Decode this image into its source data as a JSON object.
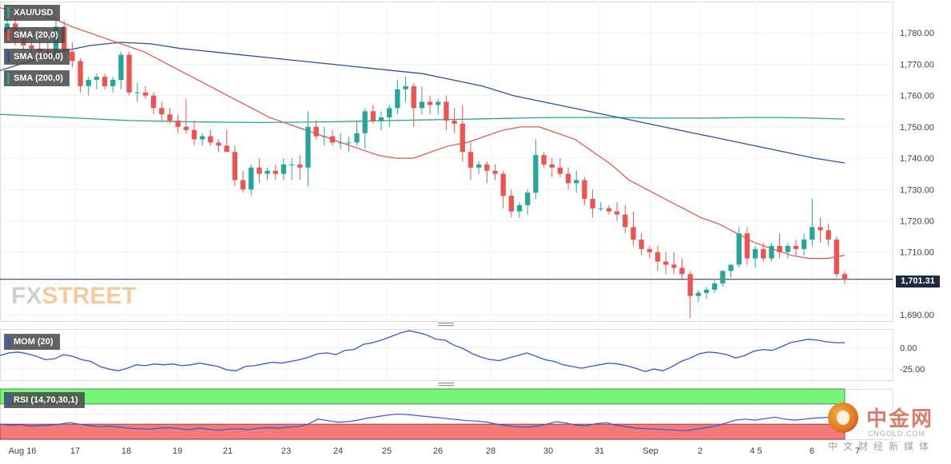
{
  "symbol": "XAU/USD",
  "indicators": {
    "sma20": "SMA (20,0)",
    "sma100": "SMA (100,0)",
    "sma200": "SMA (200,0)",
    "mom": "MOM (20)",
    "rsi": "RSI (14,70,30,1)"
  },
  "colors": {
    "bull": "#26a69a",
    "bear": "#ef5350",
    "sma20": "#e8523f",
    "sma100": "#2a4fa3",
    "sma200": "#2aa58f",
    "mom": "#3358d6",
    "rsi": "#3358d6",
    "rsi_over": "#76f57a",
    "rsi_under": "#f47a7a"
  },
  "watermark": {
    "left": "FX",
    "right": "STREET"
  },
  "current_price": "1,701.31",
  "logo": {
    "main": "中金网",
    "url": "CNGOLD.COM",
    "sub": "中文财经新媒体"
  },
  "chart_data": [
    {
      "type": "candlestick",
      "title": "XAU/USD",
      "y_ticks": [
        "1,690.00",
        "1,700.00",
        "1,710.00",
        "1,720.00",
        "1,730.00",
        "1,740.00",
        "1,750.00",
        "1,760.00",
        "1,770.00",
        "1,780.00"
      ],
      "ylim": [
        1688,
        1790
      ],
      "x_ticks": [
        "Aug 16",
        "17",
        "18",
        "19",
        "21",
        "23",
        "24",
        "25",
        "26",
        "28",
        "30",
        "31",
        "Sep",
        "2",
        "4 5",
        "6",
        "7"
      ],
      "current_price": 1701.31,
      "ohlc": [
        [
          1780,
          1787,
          1777,
          1783
        ],
        [
          1783,
          1786,
          1776,
          1778
        ],
        [
          1778,
          1781,
          1774,
          1776
        ],
        [
          1776,
          1779,
          1773,
          1775
        ],
        [
          1775,
          1778,
          1772,
          1774
        ],
        [
          1774,
          1777,
          1770,
          1772
        ],
        [
          1772,
          1784,
          1771,
          1782
        ],
        [
          1782,
          1784,
          1772,
          1774
        ],
        [
          1774,
          1777,
          1769,
          1771
        ],
        [
          1771,
          1772,
          1761,
          1763
        ],
        [
          1763,
          1766,
          1760,
          1765
        ],
        [
          1765,
          1767,
          1762,
          1766
        ],
        [
          1766,
          1767,
          1762,
          1763
        ],
        [
          1763,
          1766,
          1761,
          1765
        ],
        [
          1765,
          1774,
          1762,
          1773
        ],
        [
          1773,
          1774,
          1760,
          1761
        ],
        [
          1761,
          1764,
          1758,
          1761
        ],
        [
          1761,
          1763,
          1759,
          1760
        ],
        [
          1760,
          1761,
          1754,
          1756
        ],
        [
          1756,
          1758,
          1752,
          1754
        ],
        [
          1754,
          1756,
          1751,
          1752
        ],
        [
          1752,
          1754,
          1748,
          1750
        ],
        [
          1750,
          1759,
          1748,
          1749
        ],
        [
          1749,
          1752,
          1744,
          1746
        ],
        [
          1746,
          1748,
          1744,
          1747
        ],
        [
          1747,
          1749,
          1744,
          1745
        ],
        [
          1745,
          1746,
          1742,
          1744
        ],
        [
          1744,
          1749,
          1742,
          1742
        ],
        [
          1742,
          1744,
          1731,
          1733
        ],
        [
          1733,
          1736,
          1729,
          1730
        ],
        [
          1730,
          1738,
          1728,
          1737
        ],
        [
          1737,
          1740,
          1732,
          1735
        ],
        [
          1735,
          1737,
          1733,
          1736
        ],
        [
          1736,
          1738,
          1733,
          1735
        ],
        [
          1735,
          1740,
          1733,
          1738
        ],
        [
          1738,
          1740,
          1733,
          1738
        ],
        [
          1738,
          1741,
          1733,
          1737
        ],
        [
          1737,
          1755,
          1731,
          1750
        ],
        [
          1750,
          1752,
          1746,
          1747
        ],
        [
          1747,
          1750,
          1744,
          1747
        ],
        [
          1747,
          1749,
          1744,
          1745
        ],
        [
          1745,
          1748,
          1743,
          1745
        ],
        [
          1745,
          1747,
          1742,
          1745
        ],
        [
          1745,
          1752,
          1744,
          1748
        ],
        [
          1748,
          1756,
          1743,
          1755
        ],
        [
          1755,
          1757,
          1751,
          1752
        ],
        [
          1752,
          1755,
          1749,
          1753
        ],
        [
          1753,
          1757,
          1750,
          1756
        ],
        [
          1756,
          1765,
          1754,
          1762
        ],
        [
          1762,
          1766,
          1758,
          1763
        ],
        [
          1763,
          1764,
          1750,
          1756
        ],
        [
          1756,
          1763,
          1754,
          1758
        ],
        [
          1758,
          1760,
          1754,
          1757
        ],
        [
          1757,
          1759,
          1754,
          1758
        ],
        [
          1758,
          1760,
          1749,
          1752
        ],
        [
          1752,
          1756,
          1748,
          1751
        ],
        [
          1751,
          1757,
          1739,
          1742
        ],
        [
          1742,
          1745,
          1733,
          1737
        ],
        [
          1737,
          1739,
          1735,
          1738
        ],
        [
          1738,
          1739,
          1732,
          1736
        ],
        [
          1736,
          1738,
          1733,
          1735
        ],
        [
          1735,
          1736,
          1724,
          1728
        ],
        [
          1728,
          1730,
          1721,
          1723
        ],
        [
          1723,
          1726,
          1721,
          1725
        ],
        [
          1725,
          1730,
          1722,
          1729
        ],
        [
          1729,
          1746,
          1727,
          1741
        ],
        [
          1741,
          1742,
          1737,
          1738
        ],
        [
          1738,
          1740,
          1734,
          1737
        ],
        [
          1737,
          1740,
          1734,
          1735
        ],
        [
          1735,
          1737,
          1730,
          1732
        ],
        [
          1732,
          1736,
          1729,
          1733
        ],
        [
          1733,
          1734,
          1725,
          1727
        ],
        [
          1727,
          1730,
          1721,
          1724
        ],
        [
          1724,
          1726,
          1723,
          1724
        ],
        [
          1724,
          1725,
          1722,
          1723
        ],
        [
          1723,
          1726,
          1720,
          1722
        ],
        [
          1722,
          1725,
          1716,
          1718
        ],
        [
          1718,
          1723,
          1712,
          1714
        ],
        [
          1714,
          1716,
          1709,
          1711
        ],
        [
          1711,
          1712,
          1708,
          1710
        ],
        [
          1710,
          1712,
          1704,
          1707
        ],
        [
          1707,
          1710,
          1703,
          1706
        ],
        [
          1706,
          1710,
          1703,
          1705
        ],
        [
          1705,
          1708,
          1701,
          1703
        ],
        [
          1703,
          1704,
          1689,
          1696
        ],
        [
          1696,
          1698,
          1694,
          1697
        ],
        [
          1697,
          1699,
          1695,
          1698
        ],
        [
          1698,
          1701,
          1697,
          1700
        ],
        [
          1700,
          1704,
          1699,
          1704
        ],
        [
          1704,
          1706,
          1702,
          1706
        ],
        [
          1706,
          1718,
          1705,
          1716
        ],
        [
          1716,
          1718,
          1706,
          1708
        ],
        [
          1708,
          1712,
          1705,
          1711
        ],
        [
          1711,
          1713,
          1707,
          1708
        ],
        [
          1708,
          1713,
          1707,
          1712
        ],
        [
          1712,
          1716,
          1708,
          1710
        ],
        [
          1710,
          1713,
          1708,
          1712
        ],
        [
          1712,
          1714,
          1709,
          1711
        ],
        [
          1711,
          1716,
          1709,
          1714
        ],
        [
          1714,
          1727,
          1712,
          1718
        ],
        [
          1718,
          1721,
          1713,
          1717
        ],
        [
          1717,
          1719,
          1712,
          1714
        ],
        [
          1714,
          1715,
          1702,
          1703
        ],
        [
          1703,
          1704,
          1700,
          1701.31
        ]
      ],
      "series": [
        {
          "name": "SMA (20,0)",
          "values": [
            1788,
            1787,
            1786,
            1784.5,
            1782,
            1780,
            1778,
            1776,
            1774,
            1771,
            1768,
            1765,
            1762,
            1759,
            1756,
            1753,
            1751,
            1749,
            1747,
            1745,
            1743,
            1741,
            1740,
            1740,
            1742,
            1744,
            1745,
            1747,
            1749,
            1750,
            1750,
            1748,
            1746,
            1742,
            1738,
            1733,
            1730,
            1727,
            1724,
            1721,
            1719,
            1716,
            1713,
            1711,
            1709,
            1708,
            1708,
            1709
          ]
        },
        {
          "name": "SMA (100,0)",
          "values": [
            1768,
            1771,
            1774,
            1776,
            1777,
            1776.5,
            1775,
            1774,
            1773,
            1772,
            1771,
            1770,
            1769,
            1768,
            1767,
            1765,
            1763,
            1760,
            1758,
            1756,
            1754,
            1752,
            1750,
            1748,
            1746,
            1744,
            1742,
            1740,
            1738.5
          ]
        },
        {
          "name": "SMA (200,0)",
          "values": [
            1754,
            1753.5,
            1753,
            1752.5,
            1752,
            1751.8,
            1751.6,
            1751.5,
            1751.4,
            1751.5,
            1751.6,
            1751.8,
            1752,
            1752.2,
            1752.4,
            1752.6,
            1752.8,
            1753,
            1753,
            1753,
            1752.8,
            1752.8,
            1752.8,
            1753,
            1753,
            1752.8,
            1752.5
          ]
        }
      ]
    },
    {
      "type": "line",
      "title": "MOM (20)",
      "y_ticks": [
        "0.00",
        "-25.00"
      ],
      "series": [
        {
          "name": "MOM (20)",
          "values": [
            -9,
            -6,
            -5,
            -7,
            -10,
            -14,
            -13,
            -8,
            -10,
            -14,
            -16,
            -22,
            -25,
            -27,
            -24,
            -20,
            -21,
            -19,
            -20,
            -19,
            -21,
            -20,
            -18,
            -20,
            -22,
            -26,
            -27,
            -22,
            -21,
            -19,
            -17,
            -18,
            -16,
            -14,
            -11,
            -7,
            -6,
            -8,
            -3,
            -2,
            4,
            6,
            9,
            13,
            17,
            20,
            18,
            15,
            10,
            9,
            3,
            -1,
            -7,
            -11,
            -14,
            -15,
            -12,
            -9,
            -6,
            -10,
            -14,
            -16,
            -20,
            -22,
            -24,
            -22,
            -20,
            -18,
            -19,
            -21,
            -24,
            -28,
            -25,
            -27,
            -22,
            -16,
            -12,
            -7,
            -5,
            -6,
            -8,
            -12,
            -9,
            -4,
            -2,
            -3,
            1,
            6,
            8,
            10,
            9,
            7,
            6,
            6
          ]
        }
      ]
    },
    {
      "type": "line",
      "title": "RSI (14,70,30,1)",
      "series": [
        {
          "name": "RSI (14,70,30,1)",
          "values": [
            30,
            28,
            29,
            26,
            27,
            28,
            30,
            33,
            30,
            27,
            25,
            26,
            24,
            22,
            21,
            20,
            22,
            23,
            21,
            19,
            22,
            20,
            18,
            20,
            21,
            19,
            22,
            23,
            22,
            24,
            25,
            30,
            40,
            37,
            34,
            35,
            38,
            42,
            45,
            48,
            50,
            49,
            47,
            45,
            43,
            41,
            39,
            37,
            36,
            34,
            30,
            27,
            25,
            24,
            26,
            30,
            35,
            32,
            28,
            27,
            31,
            33,
            28,
            25,
            22,
            21,
            20,
            19,
            18,
            17,
            20,
            23,
            26,
            32,
            38,
            40,
            38,
            41,
            44,
            40,
            38,
            40,
            42,
            43,
            45,
            47
          ]
        }
      ]
    }
  ]
}
